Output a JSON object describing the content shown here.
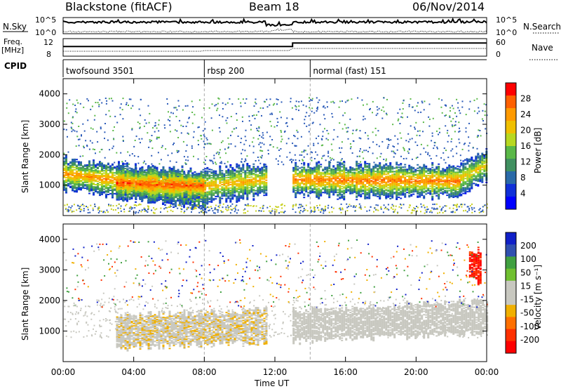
{
  "header": {
    "station": "Blackstone (fitACF)",
    "beam": "Beam 18",
    "date": "06/Nov/2014"
  },
  "top_panels": {
    "nsky_label": "N.Sky",
    "nsearch_label": "N.Search",
    "freq_label_line1": "Freq.",
    "freq_label_line2": "[MHz]",
    "nave_label": "Nave",
    "cpid_label": "CPID",
    "noise_ticks": [
      "10^5",
      "10^0"
    ],
    "freq_ticks": [
      "12",
      "8"
    ],
    "nave_ticks": [
      "60",
      "0"
    ]
  },
  "cpid_segments": [
    {
      "start_hour": 0,
      "label": "twofsound 3501"
    },
    {
      "start_hour": 8,
      "label": "rbsp 200"
    },
    {
      "start_hour": 14,
      "label": "normal (fast) 151"
    }
  ],
  "power_panel": {
    "ylabel": "Slant Range [km]",
    "cbar_label": "Power [dB]",
    "cbar_ticks": [
      "28",
      "24",
      "20",
      "16",
      "12",
      "8",
      "4"
    ],
    "cbar_colors": [
      "#ff0000",
      "#ff6000",
      "#ff9a00",
      "#f0c000",
      "#b8d820",
      "#5ab848",
      "#409060",
      "#2a6aa8",
      "#1030d8",
      "#0000ff"
    ]
  },
  "velocity_panel": {
    "ylabel": "Slant Range [km]",
    "cbar_label": "Velocity [m s⁻¹]",
    "cbar_ticks": [
      "200",
      "100",
      "50",
      "15",
      "-15",
      "-50",
      "-100",
      "-200"
    ],
    "cbar_colors": [
      "#1020c8",
      "#3050b0",
      "#40a040",
      "#70c030",
      "#c8c8c0",
      "#c8c8c0",
      "#f0b000",
      "#ff7000",
      "#ff3000",
      "#ff0000"
    ]
  },
  "range_ticks": [
    "1000",
    "2000",
    "3000",
    "4000"
  ],
  "xaxis": {
    "label": "Time UT",
    "ticks": [
      "00:00",
      "04:00",
      "08:00",
      "12:00",
      "16:00",
      "20:00",
      "00:00"
    ]
  },
  "chart_data": {
    "type": "heatmap",
    "x_range_hours": [
      0,
      24
    ],
    "y_range_km": [
      0,
      4500
    ],
    "power_db_range": [
      0,
      30
    ],
    "velocity_range": [
      -250,
      250
    ],
    "frequency_MHz": [
      {
        "start_hour": 0,
        "end_hour": 13,
        "value": 10.3
      },
      {
        "start_hour": 13,
        "end_hour": 24,
        "value": 11.5
      }
    ],
    "power_bands": [
      {
        "start_hour": 0,
        "end_hour": 8,
        "range_km_start": 1400,
        "range_km_end": 800,
        "peak_db": 24
      },
      {
        "start_hour": 3,
        "end_hour": 8,
        "range_km_start": 1100,
        "range_km_end": 1000,
        "peak_db": 28
      },
      {
        "start_hour": 8,
        "end_hour": 11.5,
        "range_km_start": 1000,
        "range_km_end": 1200,
        "peak_db": 22
      },
      {
        "start_hour": 13,
        "end_hour": 22.5,
        "range_km_start": 1200,
        "range_km_end": 1150,
        "peak_db": 26
      },
      {
        "start_hour": 22.5,
        "end_hour": 24,
        "range_km_start": 1250,
        "range_km_end": 1700,
        "peak_db": 20
      }
    ],
    "velocity_bands": [
      {
        "start_hour": 3,
        "end_hour": 11.5,
        "range_km_start": 1000,
        "range_km_end": 1200,
        "velocity": -40
      },
      {
        "start_hour": 13,
        "end_hour": 24,
        "range_km_start": 1200,
        "range_km_end": 1500,
        "velocity": 0
      },
      {
        "start_hour": 23,
        "end_hour": 23.7,
        "range_km_start": 3200,
        "range_km_end": 3100,
        "velocity": -220
      }
    ]
  }
}
